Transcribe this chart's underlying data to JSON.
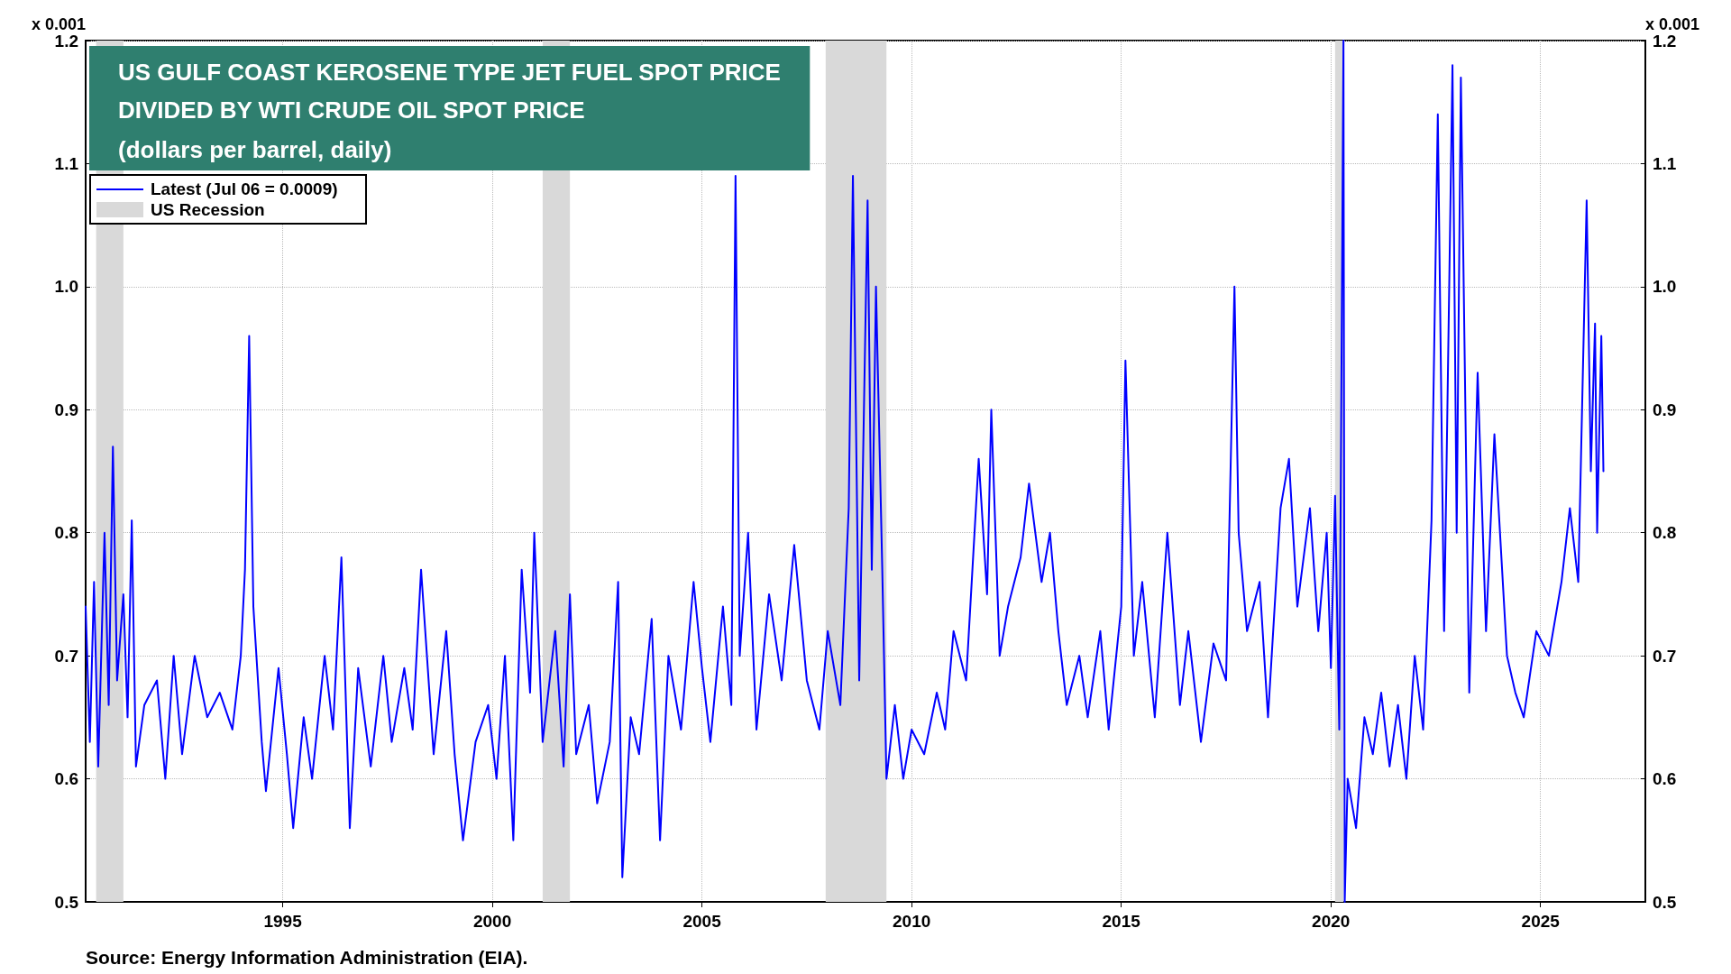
{
  "chart_data": {
    "type": "line",
    "title": "US GULF COAST KEROSENE TYPE JET FUEL SPOT PRICE\nDIVIDED BY WTI CRUDE OIL SPOT PRICE",
    "subtitle": "(dollars per barrel, daily)",
    "ylabel": "x 0.001",
    "y2label": "x 0.001",
    "annotations": [
      "Source: Energy Information Administration (EIA)."
    ],
    "xlim": [
      1990.3,
      2027.5
    ],
    "xticks": [
      1995,
      2000,
      2005,
      2010,
      2015,
      2020,
      2025
    ],
    "ylim": [
      0.5,
      1.2
    ],
    "yticks": [
      {
        "value": 0.5,
        "label": "0.5"
      },
      {
        "value": 0.6,
        "label": "0.6"
      },
      {
        "value": 0.7,
        "label": "0.7"
      },
      {
        "value": 0.8,
        "label": "0.8"
      },
      {
        "value": 0.9,
        "label": "0.9"
      },
      {
        "value": 1,
        "label": "1.0"
      },
      {
        "value": 1.1,
        "label": "1.1"
      },
      {
        "value": 1.2,
        "label": "1.2"
      }
    ],
    "y2lim": [
      0.5,
      1.2
    ],
    "y2ticks": [
      {
        "value": 0.5,
        "label": "0.5"
      },
      {
        "value": 0.6,
        "label": "0.6"
      },
      {
        "value": 0.7,
        "label": "0.7"
      },
      {
        "value": 0.8,
        "label": "0.8"
      },
      {
        "value": 0.9,
        "label": "0.9"
      },
      {
        "value": 1,
        "label": "1.0"
      },
      {
        "value": 1.1,
        "label": "1.1"
      },
      {
        "value": 1.2,
        "label": "1.2"
      }
    ],
    "grid": true,
    "legend": "top left",
    "marker": "none",
    "line_style": "solid",
    "bands": [
      {
        "axis": "x",
        "from": 1990.55,
        "to": 1991.2,
        "label": "US Recession",
        "color": "#d9d9d9"
      },
      {
        "axis": "x",
        "from": 2001.2,
        "to": 2001.85,
        "color": "#d9d9d9"
      },
      {
        "axis": "x",
        "from": 2007.95,
        "to": 2009.4,
        "color": "#d9d9d9"
      },
      {
        "axis": "x",
        "from": 2020.1,
        "to": 2020.3,
        "color": "#d9d9d9"
      }
    ],
    "series": [
      {
        "name": "Latest (Jul 06 = 0.0009)",
        "color": "#0000ff",
        "x": [
          1990.3,
          1990.4,
          1990.5,
          1990.6,
          1990.75,
          1990.85,
          1990.95,
          1991.05,
          1991.2,
          1991.3,
          1991.4,
          1991.5,
          1991.7,
          1992.0,
          1992.2,
          1992.4,
          1992.6,
          1992.9,
          1993.2,
          1993.5,
          1993.8,
          1994.0,
          1994.1,
          1994.2,
          1994.3,
          1994.5,
          1994.6,
          1994.9,
          1995.1,
          1995.25,
          1995.5,
          1995.7,
          1996.0,
          1996.2,
          1996.4,
          1996.6,
          1996.8,
          1997.1,
          1997.4,
          1997.6,
          1997.9,
          1998.1,
          1998.3,
          1998.6,
          1998.9,
          1999.1,
          1999.3,
          1999.6,
          1999.9,
          2000.1,
          2000.3,
          2000.5,
          2000.7,
          2000.9,
          2001.0,
          2001.2,
          2001.5,
          2001.7,
          2001.85,
          2002.0,
          2002.3,
          2002.5,
          2002.8,
          2003.0,
          2003.1,
          2003.3,
          2003.5,
          2003.8,
          2004.0,
          2004.2,
          2004.5,
          2004.8,
          2005.0,
          2005.2,
          2005.5,
          2005.7,
          2005.8,
          2005.9,
          2006.1,
          2006.3,
          2006.6,
          2006.9,
          2007.2,
          2007.5,
          2007.8,
          2008.0,
          2008.3,
          2008.5,
          2008.6,
          2008.75,
          2008.95,
          2009.05,
          2009.15,
          2009.3,
          2009.4,
          2009.6,
          2009.8,
          2010.0,
          2010.3,
          2010.6,
          2010.8,
          2011.0,
          2011.3,
          2011.6,
          2011.8,
          2011.9,
          2012.1,
          2012.3,
          2012.6,
          2012.8,
          2013.1,
          2013.3,
          2013.5,
          2013.7,
          2014.0,
          2014.2,
          2014.5,
          2014.7,
          2015.0,
          2015.1,
          2015.3,
          2015.5,
          2015.8,
          2016.1,
          2016.4,
          2016.6,
          2016.9,
          2017.2,
          2017.5,
          2017.7,
          2017.8,
          2018.0,
          2018.3,
          2018.5,
          2018.8,
          2019.0,
          2019.2,
          2019.5,
          2019.7,
          2019.9,
          2020.0,
          2020.1,
          2020.2,
          2020.3,
          2020.33,
          2020.4,
          2020.6,
          2020.8,
          2021.0,
          2021.2,
          2021.4,
          2021.6,
          2021.8,
          2022.0,
          2022.2,
          2022.4,
          2022.55,
          2022.7,
          2022.9,
          2023.0,
          2023.1,
          2023.3,
          2023.5,
          2023.7,
          2023.9,
          2024.2,
          2024.4,
          2024.6,
          2024.9,
          2025.2,
          2025.5,
          2025.7,
          2025.9,
          2026.1,
          2026.2,
          2026.3,
          2026.35,
          2026.45,
          2026.5
        ],
        "values": [
          0.74,
          0.63,
          0.76,
          0.61,
          0.8,
          0.66,
          0.87,
          0.68,
          0.75,
          0.65,
          0.81,
          0.61,
          0.66,
          0.68,
          0.6,
          0.7,
          0.62,
          0.7,
          0.65,
          0.67,
          0.64,
          0.7,
          0.77,
          0.96,
          0.74,
          0.63,
          0.59,
          0.69,
          0.62,
          0.56,
          0.65,
          0.6,
          0.7,
          0.64,
          0.78,
          0.56,
          0.69,
          0.61,
          0.7,
          0.63,
          0.69,
          0.64,
          0.77,
          0.62,
          0.72,
          0.62,
          0.55,
          0.63,
          0.66,
          0.6,
          0.7,
          0.55,
          0.77,
          0.67,
          0.8,
          0.63,
          0.72,
          0.61,
          0.75,
          0.62,
          0.66,
          0.58,
          0.63,
          0.76,
          0.52,
          0.65,
          0.62,
          0.73,
          0.55,
          0.7,
          0.64,
          0.76,
          0.69,
          0.63,
          0.74,
          0.66,
          1.09,
          0.7,
          0.8,
          0.64,
          0.75,
          0.68,
          0.79,
          0.68,
          0.64,
          0.72,
          0.66,
          0.82,
          1.09,
          0.68,
          1.07,
          0.77,
          1.0,
          0.77,
          0.6,
          0.66,
          0.6,
          0.64,
          0.62,
          0.67,
          0.64,
          0.72,
          0.68,
          0.86,
          0.75,
          0.9,
          0.7,
          0.74,
          0.78,
          0.84,
          0.76,
          0.8,
          0.72,
          0.66,
          0.7,
          0.65,
          0.72,
          0.64,
          0.74,
          0.94,
          0.7,
          0.76,
          0.65,
          0.8,
          0.66,
          0.72,
          0.63,
          0.71,
          0.68,
          1.0,
          0.8,
          0.72,
          0.76,
          0.65,
          0.82,
          0.86,
          0.74,
          0.82,
          0.72,
          0.8,
          0.69,
          0.83,
          0.64,
          1.2,
          0.5,
          0.6,
          0.56,
          0.65,
          0.62,
          0.67,
          0.61,
          0.66,
          0.6,
          0.7,
          0.64,
          0.81,
          1.14,
          0.72,
          1.18,
          0.8,
          1.17,
          0.67,
          0.93,
          0.72,
          0.88,
          0.7,
          0.67,
          0.65,
          0.72,
          0.7,
          0.76,
          0.82,
          0.76,
          1.07,
          0.85,
          0.97,
          0.8,
          0.96,
          0.85
        ]
      }
    ]
  }
}
